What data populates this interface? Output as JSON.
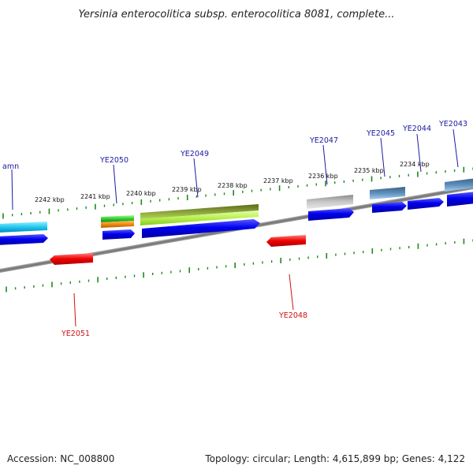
{
  "title": "Yersinia enterocolitica subsp. enterocolitica 8081, complete...",
  "footer": {
    "accession": "Accession: NC_008800",
    "summary": "Topology: circular; Length: 4,615,899 bp; Genes: 4,122"
  },
  "kbp_labels": [
    "2242 kbp",
    "2241 kbp",
    "2240 kbp",
    "2239 kbp",
    "2238 kbp",
    "2237 kbp",
    "2236 kbp",
    "2235 kbp",
    "2234 kbp"
  ],
  "gene_labels": {
    "amn": "amn",
    "ye2050": "YE2050",
    "ye2049": "YE2049",
    "ye2047": "YE2047",
    "ye2045": "YE2045",
    "ye2044": "YE2044",
    "ye2043": "YE2043",
    "ye2048": "YE2048",
    "ye2051": "YE2051"
  },
  "colors": {
    "backbone": "#808080",
    "forward_cds": "#0000e6",
    "reverse_cds": "#e60000",
    "tick": "#1a8a1a",
    "forward_label": "#1a1aa0",
    "reverse_label": "#cc1111"
  }
}
